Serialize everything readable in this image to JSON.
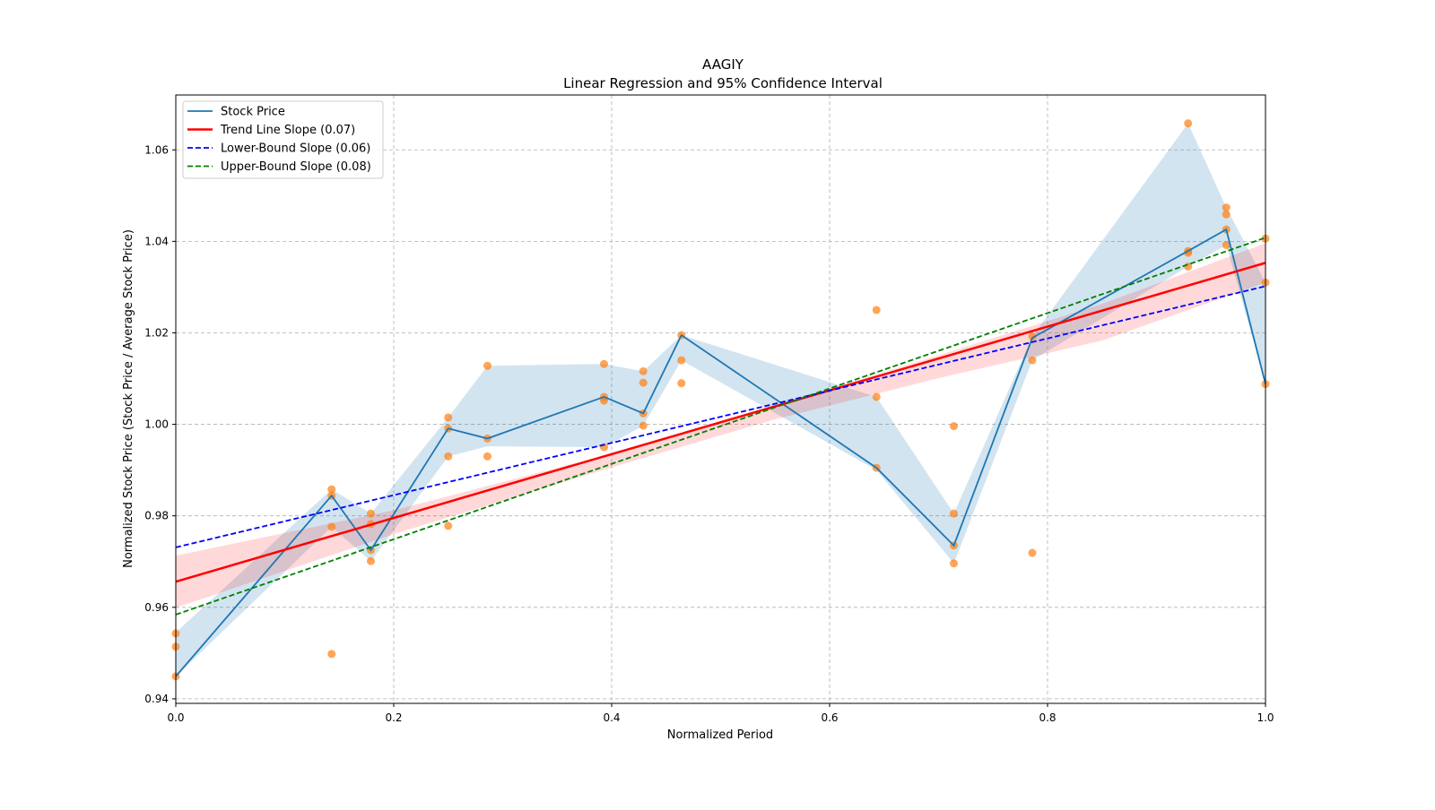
{
  "chart_data": {
    "type": "line",
    "title": "AAGIY",
    "subtitle": "Linear Regression and 95% Confidence Interval",
    "xlabel": "Normalized Period",
    "ylabel": "Normalized Stock Price (Stock Price / Average Stock Price)",
    "xlim": [
      0,
      1
    ],
    "ylim": [
      0.939,
      1.072
    ],
    "xticks": [
      0,
      0.2,
      0.4,
      0.6,
      0.8,
      1.0
    ],
    "xtick_labels": [
      "0.0",
      "0.2",
      "0.4",
      "0.6",
      "0.8",
      "1.0"
    ],
    "yticks": [
      0.94,
      0.96,
      0.98,
      1.0,
      1.02,
      1.04,
      1.06
    ],
    "ytick_labels": [
      "0.94",
      "0.96",
      "0.98",
      "1.00",
      "1.02",
      "1.04",
      "1.06"
    ],
    "grid": true,
    "legend_position": "top-left",
    "legend": [
      {
        "label": "Stock Price",
        "color": "#1f77b4",
        "style": "solid"
      },
      {
        "label": "Trend Line Slope (0.07)",
        "color": "#ff0000",
        "style": "solid"
      },
      {
        "label": "Lower-Bound Slope (0.06)",
        "color": "#0000ff",
        "style": "dashed"
      },
      {
        "label": "Upper-Bound Slope (0.08)",
        "color": "#008000",
        "style": "dashed"
      }
    ],
    "stock_price": {
      "x": [
        0,
        0.143,
        0.179,
        0.25,
        0.286,
        0.393,
        0.429,
        0.464,
        0.643,
        0.714,
        0.786,
        0.929,
        0.964,
        1.0
      ],
      "y": [
        0.9449,
        0.9844,
        0.9725,
        0.9991,
        0.9969,
        1.006,
        1.0024,
        1.0195,
        0.9905,
        0.9735,
        1.0189,
        1.0379,
        1.0426,
        1.0088
      ],
      "band_lower": [
        0.9449,
        0.9776,
        0.9701,
        0.993,
        0.9952,
        0.995,
        0.9997,
        1.014,
        0.99,
        0.9696,
        1.014,
        1.0345,
        1.0392,
        1.0088
      ],
      "band_upper": [
        0.9545,
        0.9858,
        0.9805,
        1.0015,
        1.0128,
        1.0132,
        1.0116,
        1.0195,
        1.006,
        0.9805,
        1.0192,
        1.0658,
        1.0474,
        1.031
      ]
    },
    "scatter": {
      "x": [
        0,
        0,
        0,
        0.143,
        0.143,
        0.143,
        0.143,
        0.179,
        0.179,
        0.179,
        0.179,
        0.25,
        0.25,
        0.25,
        0.25,
        0.286,
        0.286,
        0.286,
        0.393,
        0.393,
        0.393,
        0.393,
        0.429,
        0.429,
        0.429,
        0.429,
        0.464,
        0.464,
        0.464,
        0.643,
        0.643,
        0.643,
        0.714,
        0.714,
        0.714,
        0.714,
        0.786,
        0.786,
        0.786,
        0.929,
        0.929,
        0.929,
        0.929,
        0.964,
        0.964,
        0.964,
        0.964,
        1.0,
        1.0,
        1.0
      ],
      "y": [
        0.9543,
        0.9514,
        0.9449,
        0.9858,
        0.9844,
        0.9776,
        0.9498,
        0.9805,
        0.9782,
        0.9725,
        0.9701,
        1.0015,
        0.9991,
        0.993,
        0.9778,
        1.0128,
        0.9969,
        0.993,
        1.0132,
        1.006,
        1.0052,
        0.995,
        1.0116,
        1.0091,
        1.0024,
        0.9997,
        1.0195,
        1.014,
        1.009,
        1.025,
        1.006,
        0.9905,
        0.9996,
        0.9805,
        0.9735,
        0.9696,
        1.0192,
        1.014,
        0.9719,
        1.0658,
        1.0379,
        1.0375,
        1.0345,
        1.0474,
        1.0459,
        1.0426,
        1.0392,
        1.0406,
        1.031,
        1.0088
      ],
      "color": "#ff7f0e"
    },
    "trend_line": {
      "x": [
        0,
        1
      ],
      "y": [
        0.9656,
        1.0353
      ]
    },
    "lower_bound_line": {
      "x": [
        0,
        1
      ],
      "y": [
        0.9731,
        1.0302
      ]
    },
    "upper_bound_line": {
      "x": [
        0,
        1
      ],
      "y": [
        0.9584,
        1.0408
      ]
    },
    "confidence_band": {
      "x": [
        0,
        0.2,
        0.4,
        0.55,
        0.7,
        0.85,
        1.0
      ],
      "lower": [
        0.9599,
        0.976,
        0.9906,
        1.0011,
        1.0101,
        1.0183,
        1.031
      ],
      "upper": [
        0.9713,
        0.9812,
        0.9936,
        1.0041,
        1.0151,
        1.0263,
        1.0396
      ]
    }
  }
}
